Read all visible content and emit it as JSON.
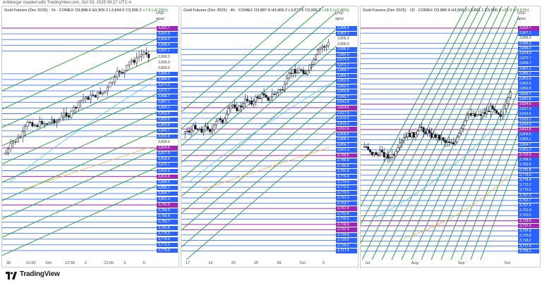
{
  "credit": "erikbregar created with TradingView.com, Oct 03, 2025 09:27 UTC-4",
  "brand": "TradingView",
  "colors": {
    "blue": "#2962ff",
    "purple": "#9c27b0",
    "green": "#2e9e3a",
    "candle_up": "#131722",
    "candle_down": "#131722"
  },
  "panels": [
    {
      "header": "Gold Futures (Dec 2025) · 1h · COMEX",
      "ohlc": "O3,898.6 H3,909.2 L3,894.5 C3,906.3",
      "change": "+7.9 (+0.20%)",
      "currency": "USD",
      "currency_sub": "apoz",
      "price_labels": [
        {
          "t": "3,922.7",
          "c": "purple"
        },
        {
          "t": "3,917.9",
          "c": "blue"
        },
        {
          "t": "3,914.2",
          "c": "blue"
        },
        {
          "t": "3,909.4",
          "c": "blue"
        },
        {
          "t": "3,907.1",
          "c": "blue"
        },
        {
          "t": "3,906.3",
          "c": "plain"
        },
        {
          "t": "3,900.0",
          "c": "plain"
        },
        {
          "t": "3,890.0",
          "c": "plain"
        },
        {
          "t": "3,886.0",
          "c": "blue"
        },
        {
          "t": "3,884.0",
          "c": "blue"
        },
        {
          "t": "3,874.0",
          "c": "blue"
        },
        {
          "t": "3,872.7",
          "c": "blue"
        },
        {
          "t": "3,868.7",
          "c": "blue"
        },
        {
          "t": "3,867.1",
          "c": "blue"
        },
        {
          "t": "3,856.1",
          "c": "blue"
        },
        {
          "t": "3,853.5",
          "c": "blue"
        },
        {
          "t": "3,852.5",
          "c": "blue"
        },
        {
          "t": "3,850.8",
          "c": "blue"
        },
        {
          "t": "3,843.7",
          "c": "blue"
        },
        {
          "t": "3,841.8",
          "c": "blue"
        },
        {
          "t": "3,830.0",
          "c": "plain"
        },
        {
          "t": "3,824.6",
          "c": "purple"
        },
        {
          "t": "3,817.9",
          "c": "blue"
        },
        {
          "t": "3,816.6",
          "c": "blue"
        },
        {
          "t": "3,815.1",
          "c": "blue"
        },
        {
          "t": "3,814.9",
          "c": "blue"
        },
        {
          "t": "3,812.6",
          "c": "purple"
        },
        {
          "t": "3,809.5",
          "c": "blue"
        },
        {
          "t": "3,805.1",
          "c": "blue"
        },
        {
          "t": "3,804.7",
          "c": "blue"
        },
        {
          "t": "3,801.3",
          "c": "blue"
        },
        {
          "t": "3,792.5",
          "c": "purple"
        },
        {
          "t": "3,784.9",
          "c": "blue"
        },
        {
          "t": "3,783.8",
          "c": "blue"
        },
        {
          "t": "3,783.7",
          "c": "blue"
        },
        {
          "t": "3,781.8",
          "c": "blue"
        },
        {
          "t": "3,776.0",
          "c": "blue"
        },
        {
          "t": "3,774.4",
          "c": "blue"
        },
        {
          "t": "3,772.2",
          "c": "blue"
        },
        {
          "t": "3,770.5",
          "c": "blue"
        }
      ],
      "x_labels": [
        "30",
        "12:00",
        "Oct",
        "12:00",
        "2",
        "12:00",
        "3",
        "5"
      ]
    },
    {
      "header": "Gold Futures (Dec 2025) · 4h · COMEX",
      "ohlc": "O3,887.8 H3,909.2 L3,877.6 C3,906.3",
      "change": "+18.6 (+0.48%)",
      "currency": "USD",
      "currency_sub": "apoz",
      "price_labels": [
        {
          "t": "3,909.4",
          "c": "blue"
        },
        {
          "t": "3,907.1",
          "c": "blue"
        },
        {
          "t": "3,906.3",
          "c": "plain"
        },
        {
          "t": "3,900.0",
          "c": "plain"
        },
        {
          "t": "3,886.0",
          "c": "blue"
        },
        {
          "t": "3,884.0",
          "c": "blue"
        },
        {
          "t": "3,874.0",
          "c": "blue"
        },
        {
          "t": "3,872.7",
          "c": "blue"
        },
        {
          "t": "3,868.7",
          "c": "blue"
        },
        {
          "t": "3,856.1",
          "c": "blue"
        },
        {
          "t": "3,853.5",
          "c": "blue"
        },
        {
          "t": "3,852.5",
          "c": "blue"
        },
        {
          "t": "3,850.8",
          "c": "blue"
        },
        {
          "t": "3,843.7",
          "c": "blue"
        },
        {
          "t": "3,841.8",
          "c": "blue"
        },
        {
          "t": "3,824.6",
          "c": "purple"
        },
        {
          "t": "3,817.9",
          "c": "blue"
        },
        {
          "t": "3,816.6",
          "c": "blue"
        },
        {
          "t": "3,815.1",
          "c": "blue"
        },
        {
          "t": "3,812.6",
          "c": "purple"
        },
        {
          "t": "3,809.5",
          "c": "blue"
        },
        {
          "t": "3,805.1",
          "c": "blue"
        },
        {
          "t": "3,804.7",
          "c": "blue"
        },
        {
          "t": "3,801.3",
          "c": "blue"
        },
        {
          "t": "3,792.5",
          "c": "purple"
        },
        {
          "t": "3,784.9",
          "c": "blue"
        },
        {
          "t": "3,783.8",
          "c": "blue"
        },
        {
          "t": "3,781.8",
          "c": "blue"
        },
        {
          "t": "3,776.0",
          "c": "blue"
        },
        {
          "t": "3,774.4",
          "c": "blue"
        },
        {
          "t": "3,772.2",
          "c": "blue"
        },
        {
          "t": "3,770.5",
          "c": "blue"
        },
        {
          "t": "3,767.3",
          "c": "blue"
        },
        {
          "t": "3,763.7",
          "c": "blue"
        },
        {
          "t": "3,757.4",
          "c": "purple"
        },
        {
          "t": "3,752.8",
          "c": "blue"
        },
        {
          "t": "3,750.5",
          "c": "blue"
        },
        {
          "t": "3,739.9",
          "c": "purple"
        },
        {
          "t": "3,737.4",
          "c": "purple"
        },
        {
          "t": "3,724.5",
          "c": "blue"
        },
        {
          "t": "3,720.8",
          "c": "blue"
        },
        {
          "t": "3,718.2",
          "c": "blue"
        },
        {
          "t": "3,717.4",
          "c": "blue"
        }
      ],
      "x_labels": [
        "17",
        "19",
        "23",
        "25",
        "28",
        "Oct",
        "3"
      ]
    },
    {
      "header": "Gold Futures (Dec 2025) · 1D · COMEX",
      "ohlc": "O3,880.4 H3,909.2 L3,861.1 C3,906.3",
      "change": "+25.9 (+0.67%)",
      "currency": "USD",
      "currency_sub": "apoz",
      "price_labels": [
        {
          "t": "3,922.7",
          "c": "purple"
        },
        {
          "t": "3,907.1",
          "c": "blue"
        },
        {
          "t": "3,906.3",
          "c": "plain"
        },
        {
          "t": "3,896.0",
          "c": "blue"
        },
        {
          "t": "3,886.0",
          "c": "blue"
        },
        {
          "t": "3,874.0",
          "c": "blue"
        },
        {
          "t": "3,872.7",
          "c": "blue"
        },
        {
          "t": "3,868.7",
          "c": "blue"
        },
        {
          "t": "3,867.1",
          "c": "blue"
        },
        {
          "t": "3,856.1",
          "c": "blue"
        },
        {
          "t": "3,853.5",
          "c": "blue"
        },
        {
          "t": "3,852.5",
          "c": "blue"
        },
        {
          "t": "3,850.8",
          "c": "blue"
        },
        {
          "t": "3,843.7",
          "c": "blue"
        },
        {
          "t": "3,841.8",
          "c": "blue"
        },
        {
          "t": "3,824.6",
          "c": "purple"
        },
        {
          "t": "3,817.9",
          "c": "blue"
        },
        {
          "t": "3,816.6",
          "c": "blue"
        },
        {
          "t": "3,815.1",
          "c": "blue"
        },
        {
          "t": "3,814.9",
          "c": "blue"
        },
        {
          "t": "3,812.6",
          "c": "purple"
        },
        {
          "t": "3,809.5",
          "c": "blue"
        },
        {
          "t": "3,805.1",
          "c": "blue"
        },
        {
          "t": "3,804.7",
          "c": "blue"
        },
        {
          "t": "3,801.3",
          "c": "blue"
        },
        {
          "t": "3,792.5",
          "c": "purple"
        },
        {
          "t": "3,784.9",
          "c": "blue"
        },
        {
          "t": "3,783.8",
          "c": "blue"
        },
        {
          "t": "3,781.8",
          "c": "blue"
        },
        {
          "t": "3,776.0",
          "c": "blue"
        },
        {
          "t": "3,774.4",
          "c": "blue"
        },
        {
          "t": "3,772.2",
          "c": "blue"
        },
        {
          "t": "3,770.5",
          "c": "blue"
        },
        {
          "t": "3,767.3",
          "c": "blue"
        },
        {
          "t": "3,763.7",
          "c": "blue"
        },
        {
          "t": "3,757.4",
          "c": "blue"
        },
        {
          "t": "3,752.8",
          "c": "blue"
        },
        {
          "t": "3,750.5",
          "c": "blue"
        },
        {
          "t": "3,739.9",
          "c": "purple"
        },
        {
          "t": "3,737.4",
          "c": "purple"
        },
        {
          "t": "3,724.5",
          "c": "blue"
        },
        {
          "t": "3,720.8",
          "c": "blue"
        },
        {
          "t": "3,718.2",
          "c": "blue"
        },
        {
          "t": "3,717.4",
          "c": "blue"
        },
        {
          "t": "3,706.1",
          "c": "blue"
        }
      ],
      "x_labels": [
        "Jul",
        "Aug",
        "Sep",
        "Oct"
      ]
    }
  ]
}
